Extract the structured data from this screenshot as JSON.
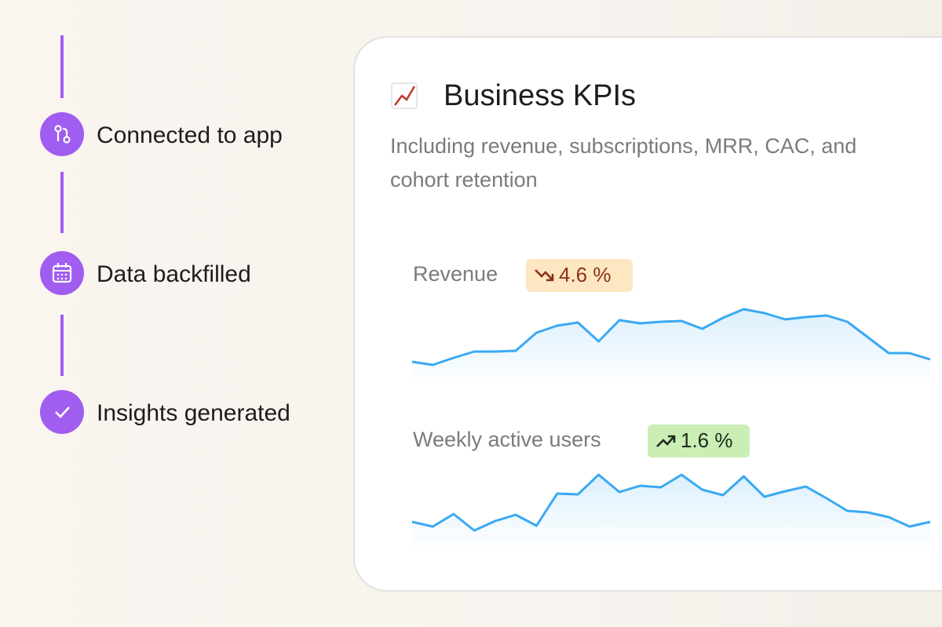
{
  "steps": [
    {
      "label": "Connected to app",
      "icon": "connect"
    },
    {
      "label": "Data backfilled",
      "icon": "calendar"
    },
    {
      "label": "Insights generated",
      "icon": "check"
    }
  ],
  "card": {
    "title": "Business KPIs",
    "description": [
      "Including revenue, subscriptions, MRR, CAC, and",
      "cohort retention"
    ],
    "metrics": [
      {
        "name": "Revenue",
        "change": "4.6 %",
        "trend": "down",
        "badge_color": "#fde7c3",
        "text_color": "#8b3216",
        "line_color": "#3aa9f2",
        "values": [
          19,
          15,
          24,
          32,
          32,
          33,
          56,
          65,
          69,
          45,
          72,
          68,
          70,
          71,
          61,
          75,
          86,
          81,
          73,
          76,
          78,
          70,
          50,
          30,
          30,
          22
        ],
        "ylim": [
          0,
          100
        ]
      },
      {
        "name": "Weekly active users",
        "change": "1.6 %",
        "trend": "up",
        "badge_color": "#cbeeb4",
        "text_color": "#1f2a1f",
        "line_color": "#3aa9f2",
        "values": [
          25,
          19,
          35,
          14,
          26,
          34,
          20,
          61,
          60,
          85,
          63,
          71,
          69,
          85,
          66,
          59,
          83,
          57,
          64,
          70,
          55,
          39,
          37,
          31,
          19,
          25
        ],
        "ylim": [
          0,
          100
        ]
      }
    ]
  }
}
